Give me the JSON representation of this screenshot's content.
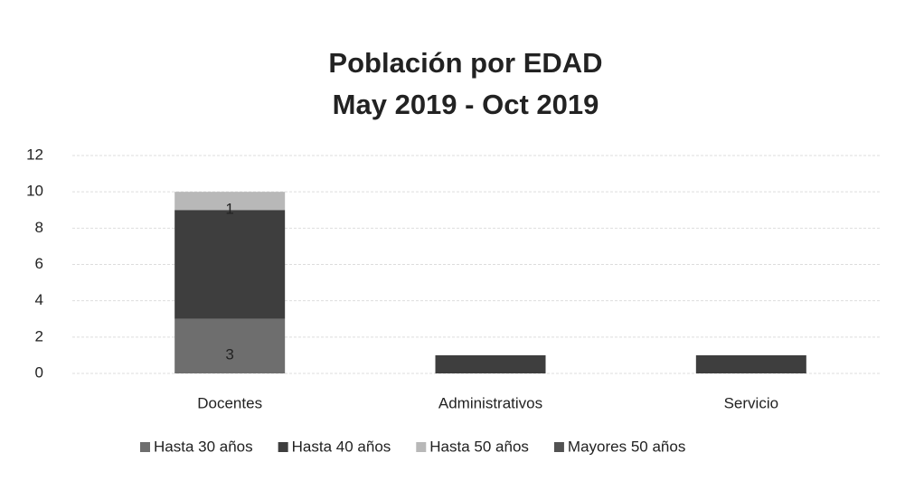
{
  "chart_data": {
    "type": "stacked_bar",
    "title": "Población por EDAD",
    "subtitle": "May 2019 - Oct 2019",
    "categories": [
      "Docentes",
      "Administrativos",
      "Servicio"
    ],
    "series": [
      {
        "name": "Hasta 30 años",
        "color": "#6e6e6e",
        "values": [
          3,
          null,
          null
        ],
        "data_labels": true
      },
      {
        "name": "Hasta 40 años",
        "color": "#3e3e3e",
        "values": [
          6,
          1,
          1
        ],
        "data_labels": false
      },
      {
        "name": "Hasta 50 años",
        "color": "#b8b8b8",
        "values": [
          1,
          null,
          null
        ],
        "data_labels": true
      },
      {
        "name": "Mayores 50 años",
        "color": "#525252",
        "values": [
          null,
          null,
          null
        ],
        "data_labels": false
      }
    ],
    "ylim": [
      0,
      12
    ],
    "yticks": [
      0,
      2,
      4,
      6,
      8,
      10,
      12
    ],
    "grid": true,
    "legend": "bottom"
  }
}
